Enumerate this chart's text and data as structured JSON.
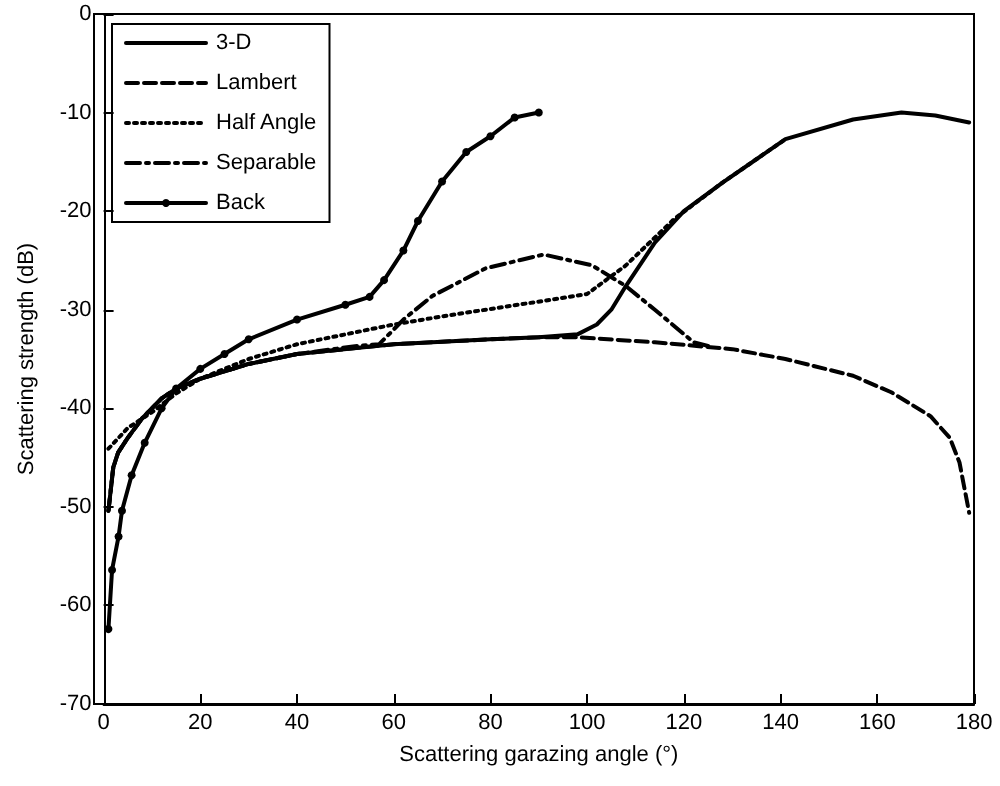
{
  "chart_data": {
    "type": "line",
    "xlabel": "Scattering garazing angle (°)",
    "ylabel": "Scattering strength (dB)",
    "xlim": [
      0,
      180
    ],
    "xticks": [
      0,
      20,
      40,
      60,
      80,
      100,
      120,
      140,
      160,
      180
    ],
    "ylim": [
      -70,
      0
    ],
    "yticks": [
      -70,
      -60,
      -50,
      -40,
      -30,
      -20,
      -10,
      0
    ],
    "grid": false,
    "legend": "top left",
    "series": [
      {
        "name": "3-D",
        "color": "#000000",
        "line_style": "solid",
        "marker": "none",
        "x": [
          1,
          2,
          3,
          5,
          8,
          12,
          15,
          20,
          30,
          40,
          60,
          80,
          90,
          98,
          102,
          105,
          108,
          114,
          120,
          128,
          141,
          155,
          165,
          172,
          179
        ],
        "values": [
          -50.4,
          -46,
          -44.5,
          -43,
          -41,
          -39,
          -38,
          -37,
          -35.5,
          -34.5,
          -33.5,
          -33,
          -32.8,
          -32.5,
          -31.5,
          -30,
          -27.6,
          -23.2,
          -20,
          -17.1,
          -12.7,
          -10.7,
          -10,
          -10.3,
          -11
        ]
      },
      {
        "name": "Lambert",
        "color": "#000000",
        "line_style": "dashed",
        "marker": "none",
        "x": [
          1,
          2,
          3,
          5,
          8,
          12,
          15,
          20,
          30,
          40,
          60,
          80,
          90,
          98,
          114,
          130,
          141,
          155,
          163,
          171,
          175,
          177,
          179
        ],
        "values": [
          -50.4,
          -46,
          -44.5,
          -43,
          -41,
          -39,
          -38,
          -37,
          -35.5,
          -34.5,
          -33.5,
          -33,
          -32.8,
          -32.8,
          -33.3,
          -34,
          -35,
          -36.7,
          -38.4,
          -40.8,
          -43,
          -45.5,
          -50.6
        ]
      },
      {
        "name": "Half Angle",
        "color": "#000000",
        "line_style": "dotted",
        "marker": "none",
        "x": [
          1,
          5,
          10,
          15,
          20,
          30,
          40,
          60,
          71,
          91,
          100,
          108,
          118,
          128,
          141
        ],
        "values": [
          -44.1,
          -42,
          -40.4,
          -38.5,
          -37,
          -35,
          -33.5,
          -31.5,
          -30.6,
          -29.1,
          -28.4,
          -25.5,
          -20.8,
          -17.1,
          -12.7
        ]
      },
      {
        "name": "Separable",
        "color": "#000000",
        "line_style": "dashdot",
        "marker": "none",
        "x": [
          1,
          2,
          3,
          5,
          8,
          12,
          15,
          20,
          30,
          40,
          52,
          57,
          62,
          68,
          79,
          91,
          101,
          108,
          114,
          122,
          126
        ],
        "values": [
          -50.4,
          -46,
          -44.5,
          -43,
          -41,
          -39,
          -38,
          -37,
          -35.5,
          -34.5,
          -33.7,
          -33.5,
          -31,
          -28.6,
          -25.8,
          -24.4,
          -25.5,
          -27.6,
          -30,
          -33.3,
          -33.8
        ]
      },
      {
        "name": "Back",
        "color": "#000000",
        "line_style": "solid",
        "marker": "circle",
        "x": [
          1,
          1.75,
          3.1,
          3.8,
          5.8,
          8.5,
          12,
          15,
          20,
          25,
          30,
          40,
          50,
          55,
          58,
          62,
          65,
          70,
          75,
          80,
          85,
          90
        ],
        "values": [
          -62.4,
          -56.4,
          -53,
          -50.4,
          -46.8,
          -43.5,
          -40,
          -38,
          -36,
          -34.5,
          -33,
          -31,
          -29.5,
          -28.7,
          -27,
          -24,
          -21,
          -17,
          -14,
          -12.4,
          -10.5,
          -10
        ]
      }
    ]
  }
}
